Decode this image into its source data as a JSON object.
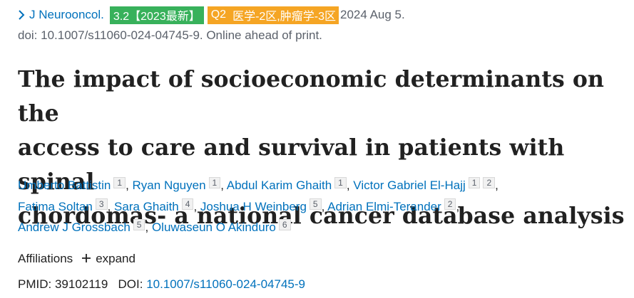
{
  "journal": {
    "chevron_icon": "chevron-right-icon",
    "name": "J Neurooncol.",
    "impact_badge": "3.2【2023最新】",
    "quartile_badge": "Q2",
    "zone_badge": "医学-2区,肿瘤学-3区",
    "date": "2024 Aug 5.",
    "colors": {
      "impact_badge_bg": "#38b15b",
      "quartile_badge_bg": "#f5a524",
      "link": "#0071bc"
    }
  },
  "doi_line": "doi: 10.1007/s11060-024-04745-9. Online ahead of print.",
  "title": {
    "line1": "The impact of socioeconomic determinants on the",
    "line2": "access to care and survival in patients with spinal",
    "line3": "chordomas- a national cancer database analysis"
  },
  "authors": [
    {
      "name": "Umberto Battistin",
      "affs": [
        "1"
      ]
    },
    {
      "name": "Ryan Nguyen",
      "affs": [
        "1"
      ]
    },
    {
      "name": "Abdul Karim Ghaith",
      "affs": [
        "1"
      ]
    },
    {
      "name": "Victor Gabriel El-Hajj",
      "affs": [
        "1",
        "2"
      ]
    },
    {
      "name": "Fatima Soltan",
      "affs": [
        "3"
      ]
    },
    {
      "name": "Sara Ghaith",
      "affs": [
        "4"
      ]
    },
    {
      "name": "Joshua H Weinberg",
      "affs": [
        "5"
      ]
    },
    {
      "name": "Adrian Elmi-Terander",
      "affs": [
        "2"
      ]
    },
    {
      "name": "Andrew J Grossbach",
      "affs": [
        "5"
      ]
    },
    {
      "name": "Oluwaseun O Akinduro",
      "affs": [
        "6"
      ]
    }
  ],
  "affiliations": {
    "label": "Affiliations",
    "expand_icon": "plus-icon",
    "expand_label": "expand"
  },
  "ids": {
    "pmid_label": "PMID:",
    "pmid": "39102119",
    "doi_label": "DOI:",
    "doi": "10.1007/s11060-024-04745-9"
  }
}
